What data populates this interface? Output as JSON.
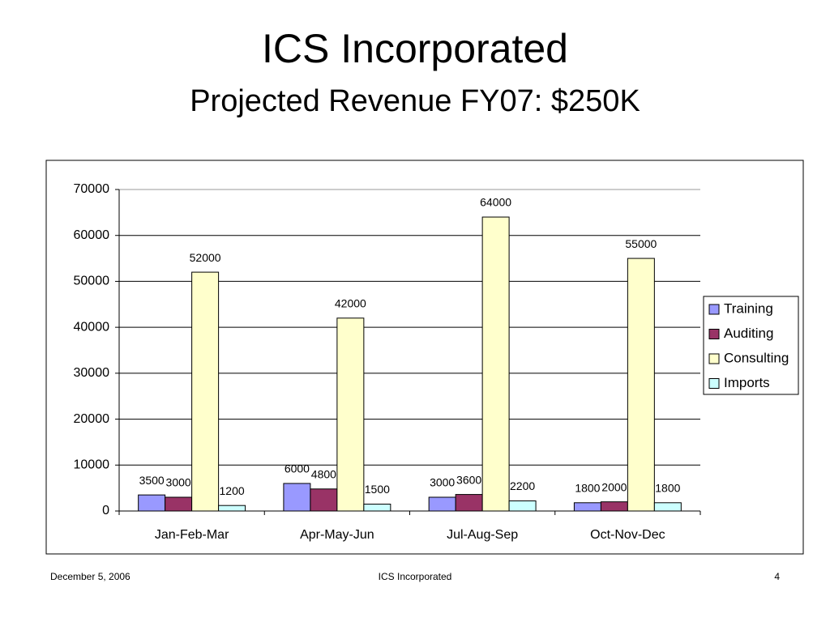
{
  "title": "ICS Incorporated",
  "subtitle": "Projected Revenue FY07:  $250K",
  "footer": {
    "date": "December 5, 2006",
    "company": "ICS Incorporated",
    "page": "4"
  },
  "chart_data": {
    "type": "bar",
    "categories": [
      "Jan-Feb-Mar",
      "Apr-May-Jun",
      "Jul-Aug-Sep",
      "Oct-Nov-Dec"
    ],
    "series": [
      {
        "name": "Training",
        "color": "#9999ff",
        "values": [
          3500,
          6000,
          3000,
          1800
        ]
      },
      {
        "name": "Auditing",
        "color": "#993366",
        "values": [
          3000,
          4800,
          3600,
          2000
        ]
      },
      {
        "name": "Consulting",
        "color": "#ffffcc",
        "values": [
          52000,
          42000,
          64000,
          55000
        ]
      },
      {
        "name": "Imports",
        "color": "#ccffff",
        "values": [
          1200,
          1500,
          2200,
          1800
        ]
      }
    ],
    "ylim": [
      0,
      70000
    ],
    "yticks": [
      0,
      10000,
      20000,
      30000,
      40000,
      50000,
      60000,
      70000
    ],
    "grid": true,
    "legend": "right"
  }
}
